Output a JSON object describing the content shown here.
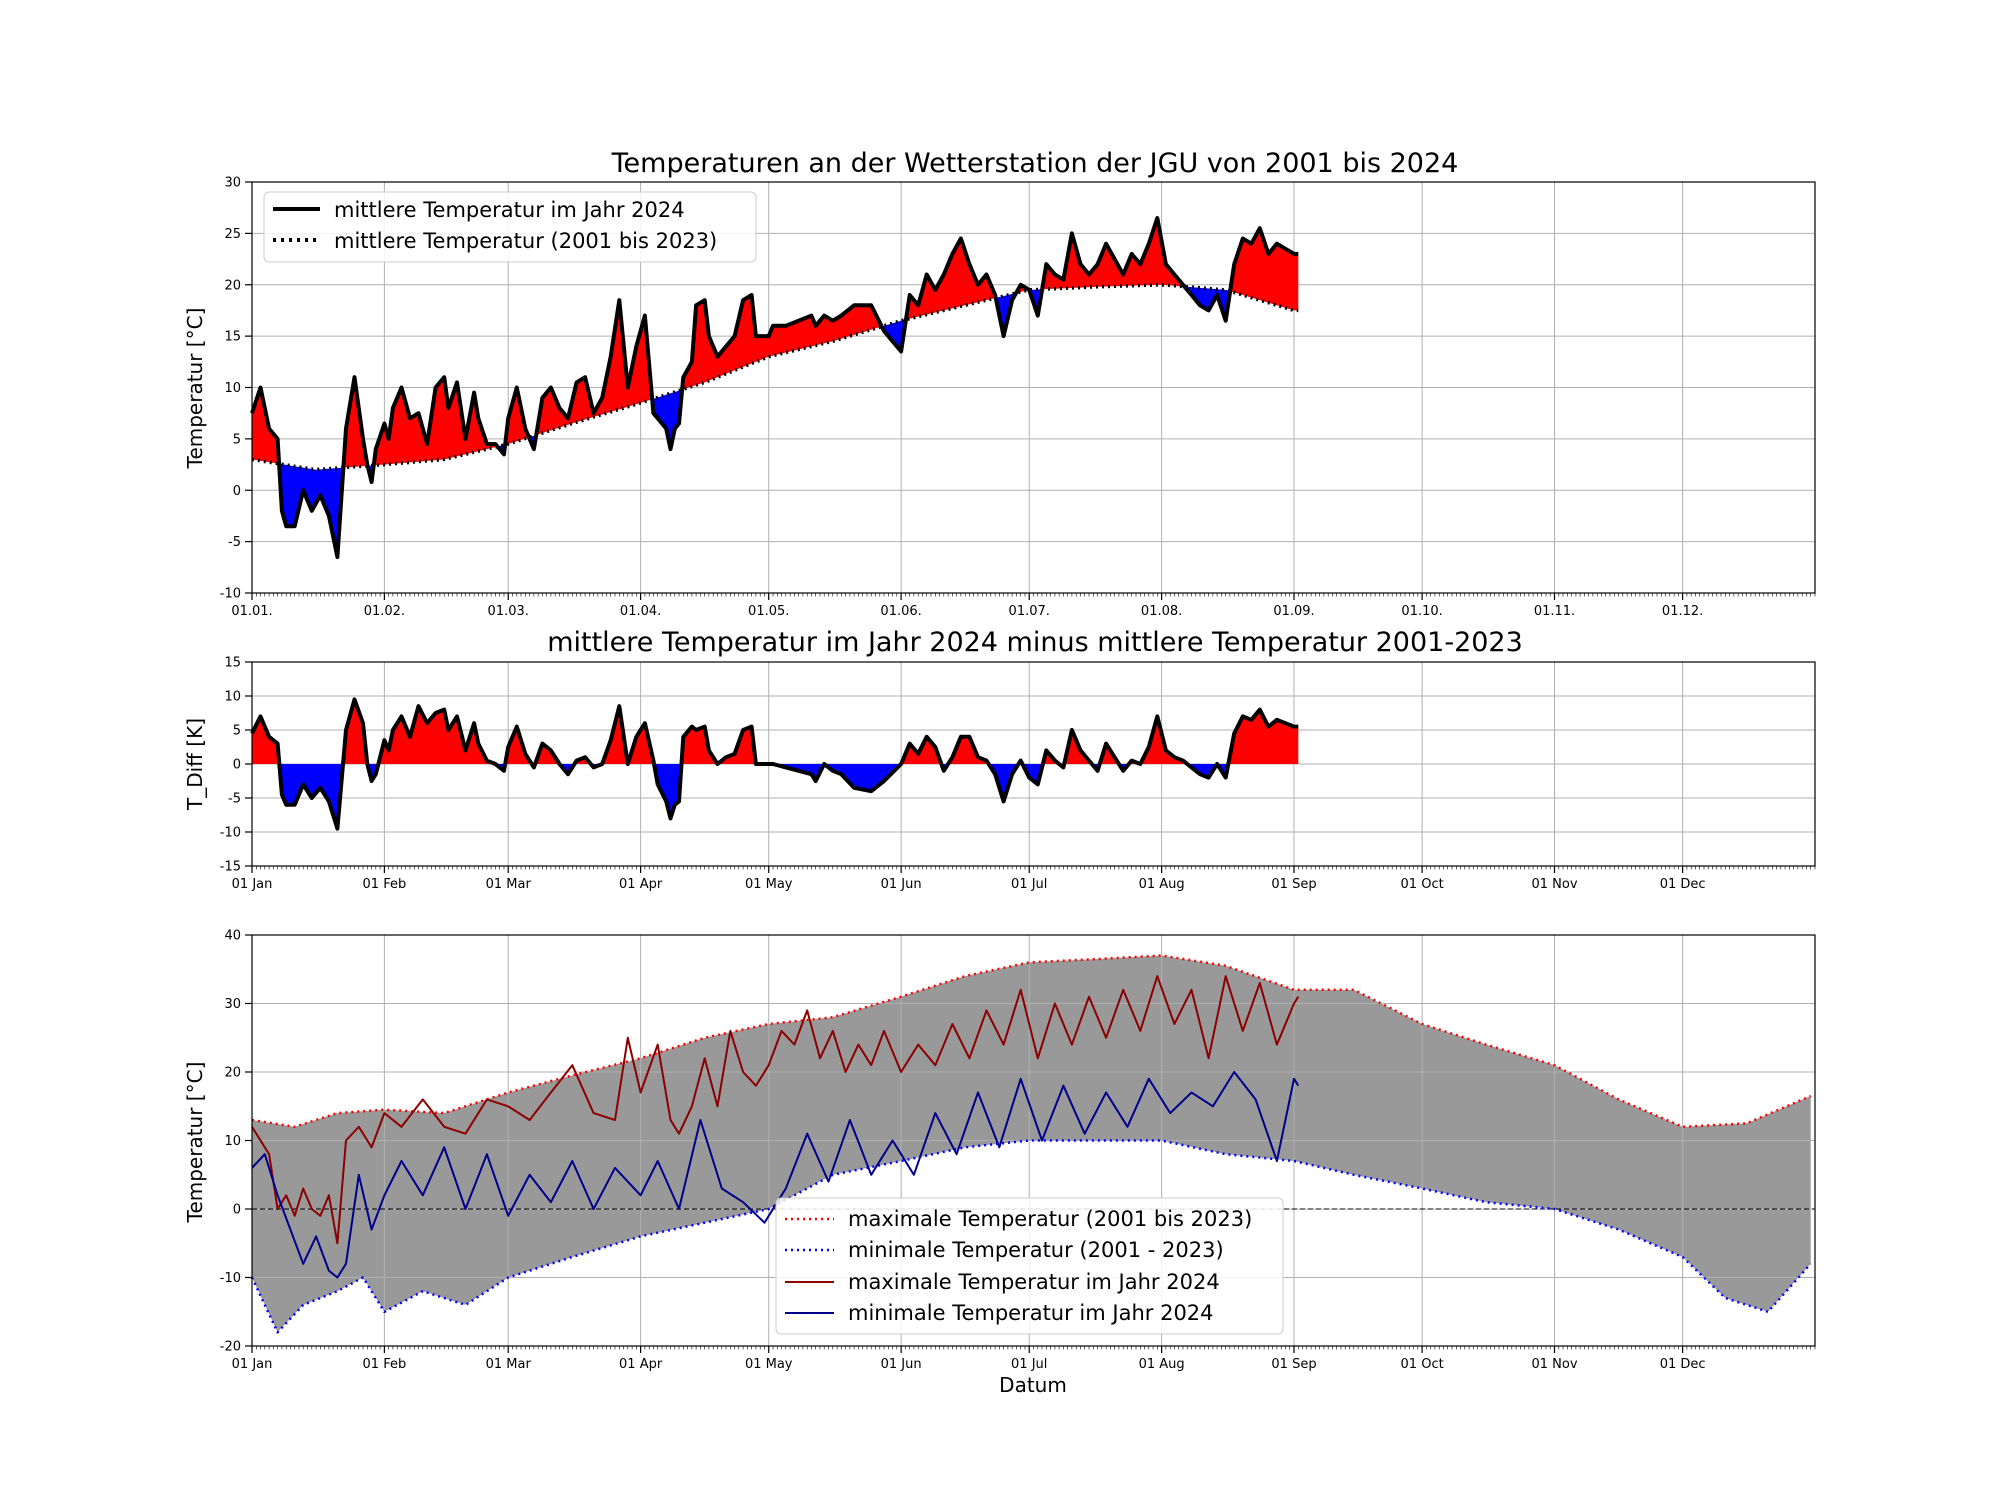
{
  "chart_data": [
    {
      "type": "line",
      "title": "Temperaturen an der Wetterstation der JGU von 2001 bis 2024",
      "ylabel": "Temperatur [°C]",
      "xlabel": "",
      "xlim": [
        0,
        366
      ],
      "ylim": [
        -10,
        30
      ],
      "yticks": [
        -10,
        -5,
        0,
        5,
        10,
        15,
        20,
        25,
        30
      ],
      "x_ticks": [
        0,
        31,
        60,
        91,
        121,
        152,
        182,
        213,
        244,
        274,
        305,
        335
      ],
      "x_tick_labels": [
        "01.01.",
        "01.02.",
        "01.03.",
        "01.04.",
        "01.05.",
        "01.06.",
        "01.07.",
        "01.08.",
        "01.09.",
        "01.10.",
        "01.11.",
        "01.12."
      ],
      "grid": true,
      "legend": "top-left",
      "fill_colors": {
        "above": "#ff0000",
        "below": "#0000ff"
      },
      "series": [
        {
          "name": "mittlere Temperatur im Jahr 2024",
          "style": "solid",
          "color": "#000000",
          "x": [
            0,
            2,
            4,
            6,
            7,
            8,
            10,
            12,
            14,
            16,
            18,
            20,
            22,
            24,
            26,
            27,
            28,
            29,
            31,
            32,
            33,
            35,
            37,
            39,
            41,
            43,
            45,
            46,
            48,
            50,
            52,
            53,
            55,
            57,
            59,
            60,
            62,
            64,
            66,
            68,
            70,
            72,
            74,
            76,
            78,
            80,
            82,
            84,
            86,
            88,
            90,
            92,
            94,
            95,
            97,
            98,
            99,
            100,
            101,
            103,
            104,
            106,
            107,
            109,
            111,
            113,
            115,
            117,
            118,
            121,
            122,
            125,
            128,
            131,
            132,
            134,
            136,
            138,
            141,
            145,
            148,
            152,
            154,
            156,
            158,
            160,
            162,
            164,
            166,
            168,
            170,
            172,
            174,
            176,
            178,
            180,
            182,
            184,
            186,
            188,
            190,
            192,
            194,
            196,
            198,
            200,
            202,
            204,
            206,
            208,
            210,
            212,
            214,
            216,
            218,
            220,
            222,
            224,
            226,
            228,
            230,
            232,
            234,
            236,
            238,
            240,
            242,
            244,
            245
          ],
          "y": [
            7.5,
            10.0,
            6.0,
            5.0,
            -2.0,
            -3.5,
            -3.5,
            0.0,
            -2.0,
            -0.5,
            -2.5,
            -6.5,
            6.0,
            11.0,
            5.0,
            2.5,
            0.8,
            4.0,
            6.5,
            5.0,
            8.0,
            10.0,
            7.0,
            7.5,
            4.5,
            10.0,
            11.0,
            8.0,
            10.5,
            5.0,
            9.5,
            7.0,
            4.5,
            4.5,
            3.5,
            7.0,
            10.0,
            6.0,
            4.0,
            9.0,
            10.0,
            8.0,
            7.0,
            10.5,
            11.0,
            7.5,
            9.0,
            13.0,
            18.5,
            10.0,
            14.0,
            17.0,
            7.5,
            7.0,
            6.0,
            4.0,
            6.0,
            6.5,
            11.0,
            12.5,
            18.0,
            18.5,
            15.0,
            13.0,
            14.0,
            15.0,
            18.5,
            19.0,
            15.0,
            15.0,
            16.0,
            16.0,
            16.5,
            17.0,
            16.0,
            17.0,
            16.5,
            17.0,
            18.0,
            18.0,
            15.5,
            13.5,
            19.0,
            18.0,
            21.0,
            19.5,
            21.0,
            23.0,
            24.5,
            22.0,
            20.0,
            21.0,
            19.0,
            15.0,
            18.5,
            20.0,
            19.5,
            17.0,
            22.0,
            21.0,
            20.5,
            25.0,
            22.0,
            21.0,
            22.0,
            24.0,
            22.5,
            21.0,
            23.0,
            22.0,
            24.0,
            26.5,
            22.0,
            21.0,
            20.0,
            19.0,
            18.0,
            17.5,
            19.0,
            16.5,
            22.0,
            24.5,
            24.0,
            25.5,
            23.0,
            24.0,
            23.5,
            23.0,
            23.0
          ]
        },
        {
          "name": "mittlere Temperatur (2001 bis 2023)",
          "style": "dotted",
          "color": "#000000",
          "x": [
            0,
            15,
            31,
            45,
            60,
            75,
            91,
            106,
            121,
            136,
            152,
            167,
            182,
            198,
            213,
            228,
            244,
            245
          ],
          "y": [
            3.0,
            2.0,
            2.5,
            3.0,
            4.5,
            6.5,
            8.5,
            10.5,
            13.0,
            14.5,
            16.5,
            18.0,
            19.5,
            19.8,
            20.0,
            19.5,
            17.5,
            17.5
          ]
        }
      ]
    },
    {
      "type": "area",
      "title": "mittlere Temperatur im Jahr 2024 minus mittlere Temperatur 2001-2023",
      "ylabel": "T_Diff [K]",
      "xlabel": "",
      "xlim": [
        0,
        366
      ],
      "ylim": [
        -15,
        15
      ],
      "yticks": [
        -15,
        -10,
        -5,
        0,
        5,
        10,
        15
      ],
      "x_ticks": [
        0,
        31,
        60,
        91,
        121,
        152,
        182,
        213,
        244,
        274,
        305,
        335
      ],
      "x_tick_labels": [
        "01 Jan",
        "01 Feb",
        "01 Mar",
        "01 Apr",
        "01 May",
        "01 Jun",
        "01 Jul",
        "01 Aug",
        "01 Sep",
        "01 Oct",
        "01 Nov",
        "01 Dec"
      ],
      "grid": true,
      "fill_colors": {
        "above": "#ff0000",
        "below": "#0000ff"
      },
      "series": [
        {
          "name": "",
          "color": "#000000",
          "x": [
            0,
            2,
            4,
            6,
            7,
            8,
            10,
            12,
            14,
            16,
            18,
            20,
            22,
            24,
            26,
            27,
            28,
            29,
            31,
            32,
            33,
            35,
            37,
            39,
            41,
            43,
            45,
            46,
            48,
            50,
            52,
            53,
            55,
            57,
            59,
            60,
            62,
            64,
            66,
            68,
            70,
            72,
            74,
            76,
            78,
            80,
            82,
            84,
            86,
            88,
            90,
            92,
            94,
            95,
            97,
            98,
            99,
            100,
            101,
            103,
            104,
            106,
            107,
            109,
            111,
            113,
            115,
            117,
            118,
            121,
            122,
            125,
            128,
            131,
            132,
            134,
            136,
            138,
            141,
            145,
            148,
            152,
            154,
            156,
            158,
            160,
            162,
            164,
            166,
            168,
            170,
            172,
            174,
            176,
            178,
            180,
            182,
            184,
            186,
            188,
            190,
            192,
            194,
            196,
            198,
            200,
            202,
            204,
            206,
            208,
            210,
            212,
            214,
            216,
            218,
            220,
            222,
            224,
            226,
            228,
            230,
            232,
            234,
            236,
            238,
            240,
            242,
            244,
            245
          ],
          "y": [
            4.5,
            7.0,
            4.0,
            3.0,
            -4.5,
            -6.0,
            -6.0,
            -3.0,
            -5.0,
            -3.5,
            -5.5,
            -9.5,
            5.0,
            9.5,
            6.0,
            0.0,
            -2.5,
            -1.5,
            3.5,
            2.0,
            5.0,
            7.0,
            4.0,
            8.5,
            6.0,
            7.5,
            8.0,
            5.0,
            7.0,
            2.0,
            6.0,
            3.0,
            0.5,
            0.0,
            -1.0,
            2.5,
            5.5,
            1.5,
            -0.5,
            3.0,
            2.0,
            0.0,
            -1.5,
            0.5,
            1.0,
            -0.5,
            0.0,
            3.5,
            8.5,
            0.0,
            4.0,
            6.0,
            0.5,
            -3.0,
            -5.5,
            -8.0,
            -6.0,
            -5.5,
            4.0,
            5.5,
            5.0,
            5.5,
            2.0,
            0.0,
            1.0,
            1.5,
            5.0,
            5.5,
            0.0,
            0.0,
            0.0,
            -0.5,
            -1.0,
            -1.5,
            -2.5,
            0.0,
            -1.0,
            -1.5,
            -3.5,
            -4.0,
            -2.5,
            0.0,
            3.0,
            1.5,
            4.0,
            2.5,
            -1.0,
            1.0,
            4.0,
            4.0,
            1.0,
            0.5,
            -1.5,
            -5.5,
            -1.5,
            0.5,
            -2.0,
            -3.0,
            2.0,
            0.5,
            -0.5,
            5.0,
            2.0,
            0.5,
            -1.0,
            3.0,
            1.0,
            -1.0,
            0.5,
            0.0,
            2.5,
            7.0,
            2.0,
            1.0,
            0.5,
            -0.5,
            -1.5,
            -2.0,
            0.0,
            -2.0,
            4.5,
            7.0,
            6.5,
            8.0,
            5.5,
            6.5,
            6.0,
            5.5,
            5.5
          ]
        }
      ]
    },
    {
      "type": "line",
      "title": "",
      "ylabel": "Temperatur [°C]",
      "xlabel": "Datum",
      "xlim": [
        0,
        366
      ],
      "ylim": [
        -20,
        40
      ],
      "yticks": [
        -20,
        -10,
        0,
        10,
        20,
        30,
        40
      ],
      "x_ticks": [
        0,
        31,
        60,
        91,
        121,
        152,
        182,
        213,
        244,
        274,
        305,
        335
      ],
      "x_tick_labels": [
        "01 Jan",
        "01 Feb",
        "01 Mar",
        "01 Apr",
        "01 May",
        "01 Jun",
        "01 Jul",
        "01 Aug",
        "01 Sep",
        "01 Oct",
        "01 Nov",
        "01 Dec"
      ],
      "grid": true,
      "legend": "bottom-center",
      "band_color": "#999999",
      "zero_line": true,
      "series": [
        {
          "name": "maximale Temperatur (2001 bis 2023)",
          "style": "dotted",
          "color": "#ff0000",
          "x": [
            0,
            10,
            20,
            31,
            45,
            60,
            75,
            91,
            106,
            121,
            136,
            152,
            167,
            182,
            198,
            213,
            228,
            244,
            258,
            274,
            289,
            305,
            320,
            335,
            350,
            365
          ],
          "y": [
            13.0,
            12.0,
            14.0,
            14.5,
            14.0,
            17.0,
            19.5,
            22.0,
            25.0,
            27.0,
            28.0,
            31.0,
            34.0,
            36.0,
            36.5,
            37.0,
            35.5,
            32.0,
            32.0,
            27.0,
            24.0,
            21.0,
            16.0,
            12.0,
            12.5,
            16.5
          ]
        },
        {
          "name": "minimale Temperatur (2001 - 2023)",
          "style": "dotted",
          "color": "#0000ff",
          "x": [
            0,
            6,
            12,
            20,
            26,
            31,
            40,
            50,
            60,
            75,
            91,
            106,
            121,
            136,
            152,
            167,
            182,
            198,
            213,
            228,
            244,
            258,
            274,
            289,
            305,
            320,
            335,
            345,
            355,
            365
          ],
          "y": [
            -10.0,
            -18.0,
            -14.0,
            -12.0,
            -10.0,
            -15.0,
            -12.0,
            -14.0,
            -10.0,
            -7.0,
            -4.0,
            -2.0,
            0.0,
            5.0,
            7.0,
            9.0,
            10.0,
            10.0,
            10.0,
            8.0,
            7.0,
            5.0,
            3.0,
            1.0,
            0.0,
            -3.0,
            -7.0,
            -13.0,
            -15.0,
            -8.0
          ]
        },
        {
          "name": "maximale Temperatur im Jahr 2024",
          "style": "solid",
          "color": "#8b0000",
          "x": [
            0,
            4,
            6,
            8,
            10,
            12,
            14,
            16,
            18,
            20,
            22,
            25,
            28,
            31,
            35,
            40,
            45,
            50,
            55,
            60,
            65,
            70,
            75,
            80,
            85,
            88,
            91,
            95,
            98,
            100,
            103,
            106,
            109,
            112,
            115,
            118,
            121,
            124,
            127,
            130,
            133,
            136,
            139,
            142,
            145,
            148,
            152,
            156,
            160,
            164,
            168,
            172,
            176,
            180,
            184,
            188,
            192,
            196,
            200,
            204,
            208,
            212,
            216,
            220,
            224,
            228,
            232,
            236,
            240,
            244,
            245
          ],
          "y": [
            12.0,
            8.0,
            0.0,
            2.0,
            -1.0,
            3.0,
            0.0,
            -1.0,
            2.0,
            -5.0,
            10.0,
            12.0,
            9.0,
            14.0,
            12.0,
            16.0,
            12.0,
            11.0,
            16.0,
            15.0,
            13.0,
            17.0,
            21.0,
            14.0,
            13.0,
            25.0,
            17.0,
            24.0,
            13.0,
            11.0,
            15.0,
            22.0,
            15.0,
            26.0,
            20.0,
            18.0,
            21.0,
            26.0,
            24.0,
            29.0,
            22.0,
            26.0,
            20.0,
            24.0,
            21.0,
            26.0,
            20.0,
            24.0,
            21.0,
            27.0,
            22.0,
            29.0,
            24.0,
            32.0,
            22.0,
            30.0,
            24.0,
            31.0,
            25.0,
            32.0,
            26.0,
            34.0,
            27.0,
            32.0,
            22.0,
            34.0,
            26.0,
            33.0,
            24.0,
            30.0,
            31.0
          ]
        },
        {
          "name": "minimale Temperatur im Jahr 2024",
          "style": "solid",
          "color": "#00008b",
          "x": [
            0,
            3,
            6,
            9,
            12,
            15,
            18,
            20,
            22,
            25,
            28,
            31,
            35,
            40,
            45,
            50,
            55,
            60,
            65,
            70,
            75,
            80,
            85,
            91,
            95,
            100,
            105,
            110,
            115,
            120,
            125,
            130,
            135,
            140,
            145,
            150,
            155,
            160,
            165,
            170,
            175,
            180,
            185,
            190,
            195,
            200,
            205,
            210,
            215,
            220,
            225,
            230,
            235,
            240,
            244,
            245
          ],
          "y": [
            6.0,
            8.0,
            2.0,
            -3.0,
            -8.0,
            -4.0,
            -9.0,
            -10.0,
            -8.0,
            5.0,
            -3.0,
            2.0,
            7.0,
            2.0,
            9.0,
            0.0,
            8.0,
            -1.0,
            5.0,
            1.0,
            7.0,
            0.0,
            6.0,
            2.0,
            7.0,
            0.0,
            13.0,
            3.0,
            1.0,
            -2.0,
            3.0,
            11.0,
            4.0,
            13.0,
            5.0,
            10.0,
            5.0,
            14.0,
            8.0,
            17.0,
            9.0,
            19.0,
            10.0,
            18.0,
            11.0,
            17.0,
            12.0,
            19.0,
            14.0,
            17.0,
            15.0,
            20.0,
            16.0,
            7.0,
            19.0,
            18.0
          ]
        }
      ]
    }
  ]
}
